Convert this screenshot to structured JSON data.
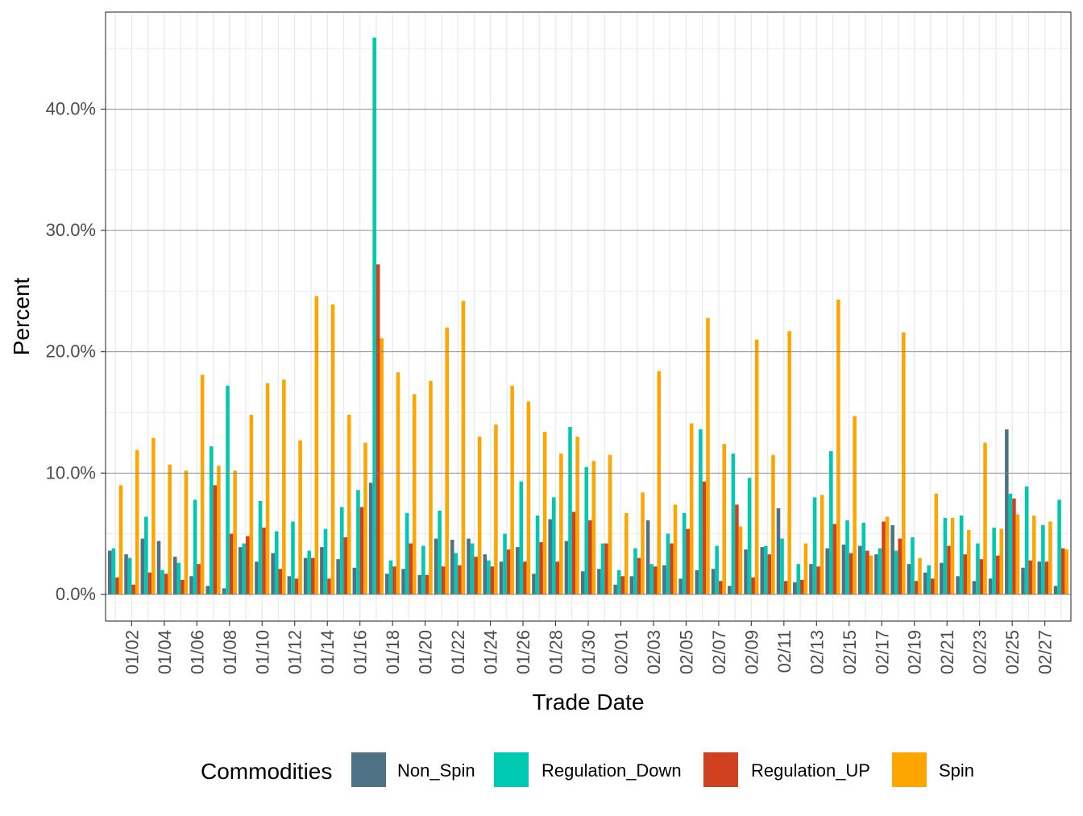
{
  "chart_data": {
    "type": "bar",
    "title": "",
    "xlabel": "Trade Date",
    "ylabel": "Percent",
    "ylim": [
      -0.022,
      0.48
    ],
    "y_ticks": [
      0,
      0.1,
      0.2,
      0.3,
      0.4
    ],
    "y_tick_labels": [
      "0.0%",
      "10.0%",
      "20.0%",
      "30.0%",
      "40.0%"
    ],
    "grid": true,
    "legend_position": "bottom",
    "legend_title": "Commodities",
    "categories": [
      "01/01",
      "01/02",
      "01/03",
      "01/04",
      "01/05",
      "01/06",
      "01/07",
      "01/08",
      "01/09",
      "01/10",
      "01/11",
      "01/12",
      "01/13",
      "01/14",
      "01/15",
      "01/16",
      "01/17",
      "01/18",
      "01/19",
      "01/20",
      "01/21",
      "01/22",
      "01/23",
      "01/24",
      "01/25",
      "01/26",
      "01/27",
      "01/28",
      "01/29",
      "01/30",
      "01/31",
      "02/01",
      "02/02",
      "02/03",
      "02/04",
      "02/05",
      "02/06",
      "02/07",
      "02/08",
      "02/09",
      "02/10",
      "02/11",
      "02/12",
      "02/13",
      "02/14",
      "02/15",
      "02/16",
      "02/17",
      "02/18",
      "02/19",
      "02/20",
      "02/21",
      "02/22",
      "02/23",
      "02/24",
      "02/25",
      "02/26",
      "02/27",
      "02/28"
    ],
    "x_tick_labels": [
      "01/02",
      "01/04",
      "01/06",
      "01/08",
      "01/10",
      "01/12",
      "01/14",
      "01/16",
      "01/18",
      "01/20",
      "01/22",
      "01/24",
      "01/26",
      "01/28",
      "01/30",
      "02/01",
      "02/03",
      "02/05",
      "02/07",
      "02/09",
      "02/11",
      "02/13",
      "02/15",
      "02/17",
      "02/19",
      "02/21",
      "02/23",
      "02/25",
      "02/27"
    ],
    "series": [
      {
        "name": "Non_Spin",
        "color": "#4e7387",
        "values": [
          0.036,
          0.033,
          0.046,
          0.044,
          0.031,
          0.015,
          0.007,
          0.005,
          0.039,
          0.027,
          0.034,
          0.015,
          0.03,
          0.039,
          0.029,
          0.022,
          0.092,
          0.017,
          0.021,
          0.016,
          0.046,
          0.045,
          0.046,
          0.033,
          0.027,
          0.039,
          0.017,
          0.062,
          0.044,
          0.019,
          0.021,
          0.008,
          0.015,
          0.061,
          0.024,
          0.013,
          0.02,
          0.021,
          0.007,
          0.037,
          0.039,
          0.071,
          0.01,
          0.025,
          0.038,
          0.041,
          0.04,
          0.033,
          0.057,
          0.025,
          0.018,
          0.026,
          0.015,
          0.011,
          0.013,
          0.136,
          0.022,
          0.027,
          0.007
        ]
      },
      {
        "name": "Regulation_Down",
        "color": "#00c9b1",
        "values": [
          0.038,
          0.03,
          0.064,
          0.02,
          0.026,
          0.078,
          0.122,
          0.172,
          0.042,
          0.077,
          0.052,
          0.06,
          0.036,
          0.054,
          0.072,
          0.086,
          0.459,
          0.028,
          0.067,
          0.04,
          0.069,
          0.034,
          0.042,
          0.028,
          0.05,
          0.093,
          0.065,
          0.08,
          0.138,
          0.105,
          0.042,
          0.02,
          0.038,
          0.025,
          0.05,
          0.067,
          0.136,
          0.04,
          0.116,
          0.096,
          0.04,
          0.046,
          0.025,
          0.08,
          0.118,
          0.061,
          0.059,
          0.038,
          0.036,
          0.047,
          0.024,
          0.063,
          0.065,
          0.042,
          0.055,
          0.083,
          0.089,
          0.057,
          0.078
        ]
      },
      {
        "name": "Regulation_UP",
        "color": "#d0421f",
        "values": [
          0.014,
          0.008,
          0.018,
          0.017,
          0.012,
          0.025,
          0.09,
          0.05,
          0.048,
          0.055,
          0.021,
          0.013,
          0.03,
          0.013,
          0.047,
          0.072,
          0.272,
          0.023,
          0.042,
          0.016,
          0.023,
          0.024,
          0.031,
          0.023,
          0.037,
          0.027,
          0.043,
          0.027,
          0.068,
          0.061,
          0.042,
          0.015,
          0.03,
          0.023,
          0.042,
          0.054,
          0.093,
          0.011,
          0.074,
          0.014,
          0.033,
          0.011,
          0.012,
          0.023,
          0.058,
          0.034,
          0.036,
          0.06,
          0.046,
          0.011,
          0.013,
          0.04,
          0.033,
          0.029,
          0.032,
          0.079,
          0.028,
          0.027,
          0.038
        ]
      },
      {
        "name": "Spin",
        "color": "#ffa500",
        "values": [
          0.09,
          0.119,
          0.129,
          0.107,
          0.102,
          0.181,
          0.106,
          0.102,
          0.148,
          0.174,
          0.177,
          0.127,
          0.246,
          0.239,
          0.148,
          0.125,
          0.211,
          0.183,
          0.165,
          0.176,
          0.22,
          0.242,
          0.13,
          0.14,
          0.172,
          0.159,
          0.134,
          0.116,
          0.13,
          0.11,
          0.115,
          0.067,
          0.084,
          0.184,
          0.074,
          0.141,
          0.228,
          0.124,
          0.056,
          0.21,
          0.115,
          0.217,
          0.042,
          0.082,
          0.243,
          0.147,
          0.032,
          0.064,
          0.216,
          0.03,
          0.083,
          0.063,
          0.053,
          0.125,
          0.054,
          0.066,
          0.065,
          0.06,
          0.037
        ]
      }
    ]
  }
}
